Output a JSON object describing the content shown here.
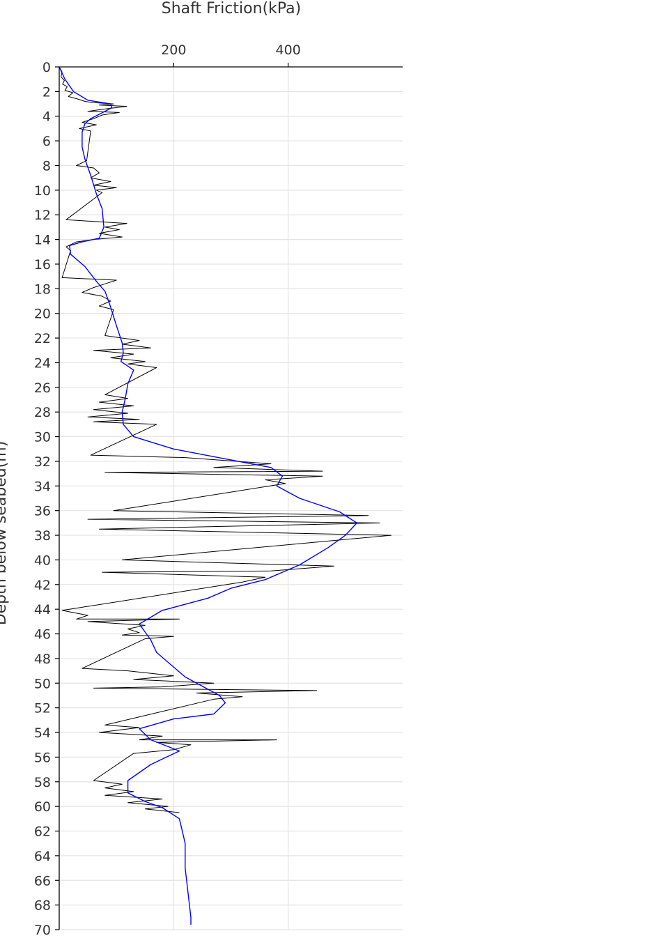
{
  "chart_data": {
    "type": "line",
    "title": "Shaft Friction(kPa)",
    "xlabel": "Shaft Friction(kPa)",
    "ylabel": "Depth below seabed(m)",
    "xlim": [
      0,
      600
    ],
    "ylim": [
      70,
      0
    ],
    "x_ticks": [
      200,
      400
    ],
    "y_ticks": [
      0,
      2,
      4,
      6,
      8,
      10,
      12,
      14,
      16,
      18,
      20,
      22,
      24,
      26,
      28,
      30,
      32,
      34,
      36,
      38,
      40,
      42,
      44,
      46,
      48,
      50,
      52,
      54,
      56,
      58,
      60,
      62,
      64,
      66,
      68,
      70
    ],
    "x_axis_position": "top",
    "grid": true,
    "series": [
      {
        "color": "#000000",
        "points": [
          [
            0,
            0
          ],
          [
            5,
            0.4
          ],
          [
            3,
            0.8
          ],
          [
            9,
            1.1
          ],
          [
            6,
            1.4
          ],
          [
            14,
            1.6
          ],
          [
            10,
            1.9
          ],
          [
            24,
            2.1
          ],
          [
            16,
            2.4
          ],
          [
            32,
            2.6
          ],
          [
            45,
            2.8
          ],
          [
            60,
            2.9
          ],
          [
            95,
            3.0
          ],
          [
            70,
            3.1
          ],
          [
            118,
            3.2
          ],
          [
            82,
            3.4
          ],
          [
            50,
            3.6
          ],
          [
            105,
            3.7
          ],
          [
            75,
            3.9
          ],
          [
            60,
            4.2
          ],
          [
            40,
            4.5
          ],
          [
            65,
            4.7
          ],
          [
            35,
            5.0
          ],
          [
            55,
            5.2
          ],
          [
            48,
            7.6
          ],
          [
            30,
            8.0
          ],
          [
            60,
            8.2
          ],
          [
            70,
            8.6
          ],
          [
            55,
            9.0
          ],
          [
            90,
            9.3
          ],
          [
            60,
            9.6
          ],
          [
            100,
            9.8
          ],
          [
            65,
            10.0
          ],
          [
            75,
            10.2
          ],
          [
            12,
            12.4
          ],
          [
            118,
            12.7
          ],
          [
            80,
            13.0
          ],
          [
            105,
            13.2
          ],
          [
            70,
            13.5
          ],
          [
            110,
            13.8
          ],
          [
            60,
            14.0
          ],
          [
            30,
            14.2
          ],
          [
            12,
            14.6
          ],
          [
            20,
            14.9
          ],
          [
            5,
            17.1
          ],
          [
            100,
            17.3
          ],
          [
            80,
            17.6
          ],
          [
            60,
            17.9
          ],
          [
            40,
            18.3
          ],
          [
            75,
            18.6
          ],
          [
            90,
            19.0
          ],
          [
            70,
            19.4
          ],
          [
            95,
            19.7
          ],
          [
            80,
            21.8
          ],
          [
            140,
            22.2
          ],
          [
            110,
            22.5
          ],
          [
            160,
            22.8
          ],
          [
            60,
            23.0
          ],
          [
            130,
            23.3
          ],
          [
            90,
            23.6
          ],
          [
            150,
            23.9
          ],
          [
            120,
            24.1
          ],
          [
            170,
            24.4
          ],
          [
            80,
            26.6
          ],
          [
            120,
            26.9
          ],
          [
            70,
            27.2
          ],
          [
            130,
            27.5
          ],
          [
            60,
            27.8
          ],
          [
            120,
            28.1
          ],
          [
            50,
            28.4
          ],
          [
            140,
            28.6
          ],
          [
            60,
            28.8
          ],
          [
            170,
            29.0
          ],
          [
            55,
            31.5
          ],
          [
            220,
            31.7
          ],
          [
            370,
            32.2
          ],
          [
            270,
            32.5
          ],
          [
            460,
            32.8
          ],
          [
            80,
            32.9
          ],
          [
            460,
            33.2
          ],
          [
            360,
            33.5
          ],
          [
            395,
            33.8
          ],
          [
            95,
            36.0
          ],
          [
            540,
            36.4
          ],
          [
            50,
            36.7
          ],
          [
            560,
            37.0
          ],
          [
            70,
            37.5
          ],
          [
            580,
            38.0
          ],
          [
            110,
            40.0
          ],
          [
            480,
            40.5
          ],
          [
            370,
            40.9
          ],
          [
            75,
            41.0
          ],
          [
            360,
            41.4
          ],
          [
            320,
            41.8
          ],
          [
            5,
            44.1
          ],
          [
            50,
            44.5
          ],
          [
            30,
            44.8
          ],
          [
            210,
            44.8
          ],
          [
            50,
            45.0
          ],
          [
            150,
            45.3
          ],
          [
            120,
            45.6
          ],
          [
            140,
            45.9
          ],
          [
            110,
            46.1
          ],
          [
            200,
            46.2
          ],
          [
            150,
            46.4
          ],
          [
            40,
            48.8
          ],
          [
            120,
            49.0
          ],
          [
            200,
            49.4
          ],
          [
            130,
            49.7
          ],
          [
            270,
            50.0
          ],
          [
            180,
            50.3
          ],
          [
            60,
            50.4
          ],
          [
            450,
            50.6
          ],
          [
            240,
            50.8
          ],
          [
            320,
            51.1
          ],
          [
            270,
            51.3
          ],
          [
            80,
            53.4
          ],
          [
            140,
            53.6
          ],
          [
            70,
            54.0
          ],
          [
            180,
            54.3
          ],
          [
            140,
            54.6
          ],
          [
            380,
            54.6
          ],
          [
            170,
            54.8
          ],
          [
            230,
            55.0
          ],
          [
            200,
            55.4
          ],
          [
            130,
            55.7
          ],
          [
            60,
            57.9
          ],
          [
            110,
            58.2
          ],
          [
            80,
            58.5
          ],
          [
            130,
            58.8
          ],
          [
            80,
            59.1
          ],
          [
            180,
            59.4
          ],
          [
            120,
            59.7
          ],
          [
            190,
            60.0
          ],
          [
            150,
            60.2
          ],
          [
            210,
            60.5
          ]
        ]
      },
      {
        "color": "#0000ff",
        "points": [
          [
            0,
            0
          ],
          [
            10,
            1
          ],
          [
            25,
            2
          ],
          [
            50,
            2.7
          ],
          [
            90,
            3.0
          ],
          [
            92,
            3.3
          ],
          [
            80,
            3.6
          ],
          [
            55,
            4.2
          ],
          [
            45,
            4.6
          ],
          [
            40,
            5.3
          ],
          [
            40,
            6.5
          ],
          [
            45,
            7.5
          ],
          [
            55,
            8.8
          ],
          [
            65,
            10.3
          ],
          [
            75,
            11.5
          ],
          [
            78,
            13.0
          ],
          [
            70,
            13.9
          ],
          [
            40,
            14.2
          ],
          [
            18,
            14.5
          ],
          [
            20,
            15.2
          ],
          [
            45,
            16.2
          ],
          [
            65,
            17.4
          ],
          [
            80,
            18.2
          ],
          [
            90,
            19.5
          ],
          [
            100,
            21.0
          ],
          [
            110,
            22.4
          ],
          [
            112,
            23.2
          ],
          [
            108,
            23.9
          ],
          [
            130,
            24.6
          ],
          [
            120,
            25.7
          ],
          [
            115,
            27.0
          ],
          [
            110,
            28.0
          ],
          [
            112,
            29.0
          ],
          [
            130,
            30.0
          ],
          [
            200,
            31.0
          ],
          [
            290,
            31.8
          ],
          [
            370,
            32.5
          ],
          [
            390,
            33.2
          ],
          [
            380,
            34.0
          ],
          [
            420,
            35.0
          ],
          [
            490,
            36.1
          ],
          [
            520,
            37.0
          ],
          [
            500,
            38.0
          ],
          [
            470,
            39.0
          ],
          [
            420,
            40.4
          ],
          [
            360,
            41.6
          ],
          [
            300,
            42.3
          ],
          [
            260,
            43.1
          ],
          [
            180,
            44.1
          ],
          [
            140,
            45.2
          ],
          [
            160,
            46.5
          ],
          [
            170,
            47.5
          ],
          [
            220,
            49.5
          ],
          [
            280,
            51.0
          ],
          [
            290,
            51.6
          ],
          [
            270,
            52.5
          ],
          [
            200,
            52.9
          ],
          [
            140,
            53.7
          ],
          [
            160,
            54.6
          ],
          [
            210,
            55.5
          ],
          [
            160,
            56.6
          ],
          [
            120,
            57.9
          ],
          [
            120,
            58.9
          ],
          [
            150,
            59.6
          ],
          [
            180,
            60.1
          ],
          [
            210,
            61.0
          ],
          [
            220,
            63.0
          ],
          [
            220,
            65.0
          ],
          [
            225,
            67.0
          ],
          [
            230,
            69.0
          ],
          [
            230,
            69.6
          ]
        ]
      }
    ]
  }
}
